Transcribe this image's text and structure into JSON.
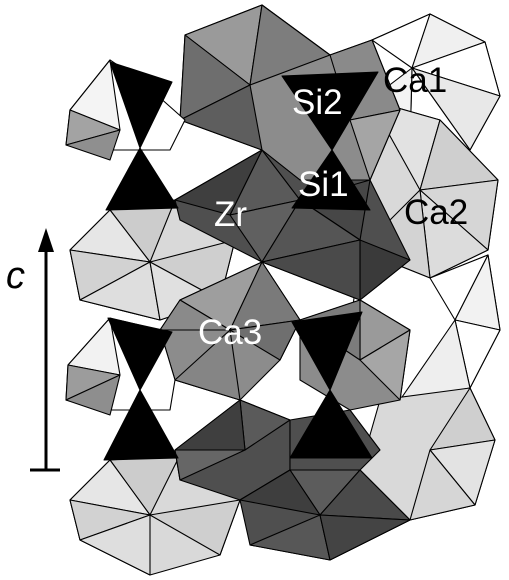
{
  "labels": {
    "ca1": "Ca1",
    "si2": "Si2",
    "si1": "Si1",
    "ca2": "Ca2",
    "zr": "Zr",
    "ca3": "Ca3"
  },
  "axis": {
    "label": "c"
  },
  "colors": {
    "tetrahedra": "#000000",
    "zr_octahedra": "#4f4f4f",
    "zr_octahedra_mid": "#6e6e6e",
    "ca_polyhedra_light": "#d9d9d9",
    "ca_polyhedra_mid": "#9a9a9a",
    "ca_polyhedra_white": "#ffffff",
    "edges": "#000000"
  },
  "icons": {
    "axis_arrow": "up-arrow-icon"
  }
}
